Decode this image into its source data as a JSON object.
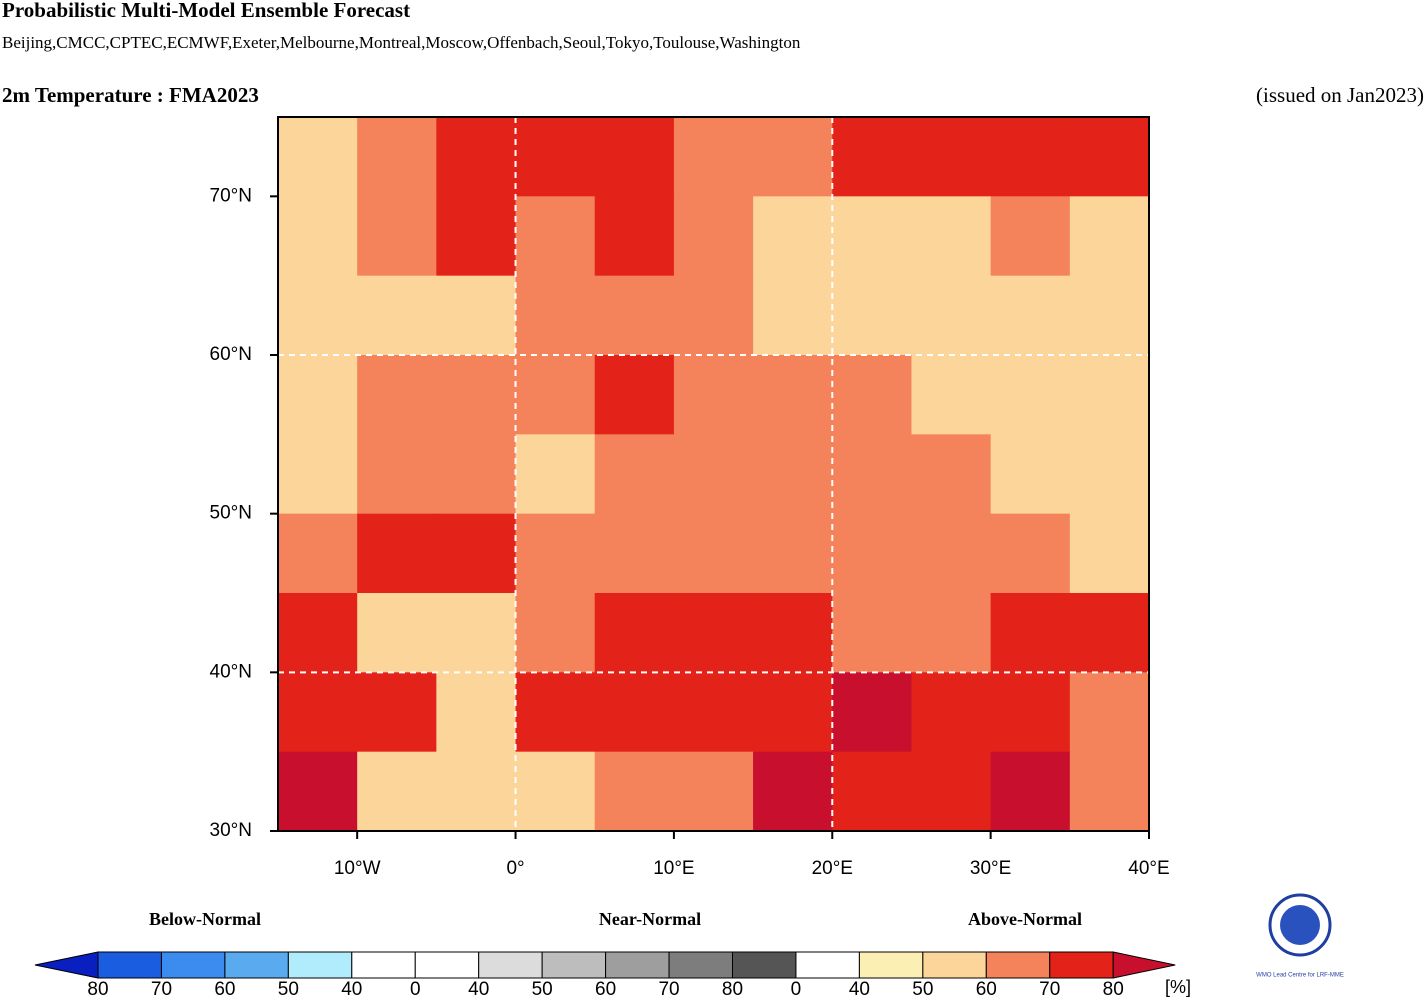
{
  "header": {
    "title": "Probabilistic Multi-Model Ensemble Forecast",
    "subtitle": "Beijing,CMCC,CPTEC,ECMWF,Exeter,Melbourne,Montreal,Moscow,Offenbach,Seoul,Tokyo,Toulouse,Washington",
    "variable": "2m Temperature : FMA2023",
    "issued": "(issued on Jan2023)"
  },
  "map": {
    "lon_lim": [
      -15,
      40
    ],
    "lat_lim": [
      30,
      75
    ],
    "lon_ticks": [
      {
        "value": -10,
        "label": "10°W"
      },
      {
        "value": 0,
        "label": "0°"
      },
      {
        "value": 10,
        "label": "10°E"
      },
      {
        "value": 20,
        "label": "20°E"
      },
      {
        "value": 30,
        "label": "30°E"
      },
      {
        "value": 40,
        "label": "40°E"
      }
    ],
    "lat_ticks": [
      {
        "value": 30,
        "label": "30°N"
      },
      {
        "value": 40,
        "label": "40°N"
      },
      {
        "value": 50,
        "label": "50°N"
      },
      {
        "value": 60,
        "label": "60°N"
      },
      {
        "value": 70,
        "label": "70°N"
      }
    ],
    "grid_lon": [
      0,
      20
    ],
    "grid_lat": [
      40,
      60
    ],
    "cells": [
      [
        55,
        65,
        75,
        75,
        75,
        65,
        65,
        75,
        75,
        75,
        75
      ],
      [
        55,
        65,
        75,
        65,
        75,
        65,
        55,
        55,
        55,
        65,
        55
      ],
      [
        55,
        55,
        55,
        65,
        65,
        65,
        55,
        55,
        55,
        55,
        55
      ],
      [
        55,
        65,
        65,
        65,
        75,
        65,
        65,
        65,
        55,
        55,
        55
      ],
      [
        55,
        65,
        65,
        55,
        65,
        65,
        65,
        65,
        65,
        55,
        55
      ],
      [
        65,
        75,
        75,
        65,
        65,
        65,
        65,
        65,
        65,
        65,
        55
      ],
      [
        75,
        55,
        55,
        65,
        75,
        75,
        75,
        65,
        65,
        75,
        75
      ],
      [
        75,
        75,
        55,
        75,
        75,
        75,
        75,
        85,
        75,
        75,
        65
      ],
      [
        85,
        55,
        55,
        55,
        65,
        65,
        85,
        75,
        75,
        85,
        65
      ]
    ]
  },
  "legend": {
    "groups": [
      "Below-Normal",
      "Near-Normal",
      "Above-Normal"
    ],
    "labels": [
      80,
      70,
      60,
      50,
      40,
      0,
      40,
      50,
      60,
      70,
      80,
      0,
      40,
      50,
      60,
      70,
      80
    ],
    "unit": "[%]",
    "colors": [
      "#0a1fc0",
      "#1a5de0",
      "#3c8cf0",
      "#5aaaf0",
      "#b0ecfb",
      "#ffffff",
      "#ffffff",
      "#dcdcdc",
      "#bdbdbd",
      "#9e9e9e",
      "#7d7d7d",
      "#555555",
      "#ffffff",
      "#fcefb4",
      "#fbd59a",
      "#f4825a",
      "#e32219",
      "#c8102e"
    ]
  },
  "logo": {
    "text": "WMO Lead Centre for LRF-MME"
  }
}
